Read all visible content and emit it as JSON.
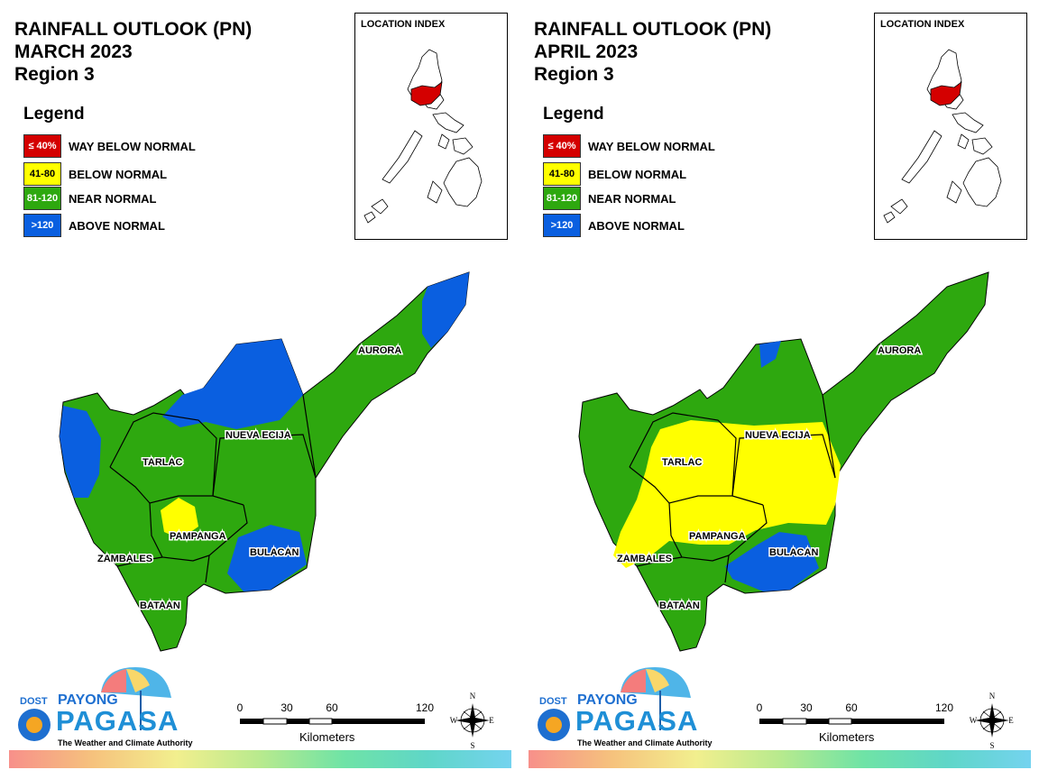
{
  "panels": [
    {
      "title_line1": "RAINFALL OUTLOOK (PN)",
      "title_line2": "MARCH 2023",
      "title_line3": "Region 3",
      "legend_title": "Legend",
      "legend": [
        {
          "badge": "≤ 40%",
          "label": "WAY BELOW NORMAL",
          "color": "#d40000"
        },
        {
          "badge": "41-80",
          "label": "BELOW NORMAL",
          "color": "#ffff00"
        },
        {
          "badge": "81-120",
          "label": "NEAR NORMAL",
          "color": "#2ea80f"
        },
        {
          "badge": ">120",
          "label": "ABOVE NORMAL",
          "color": "#0a5fe0"
        }
      ],
      "inset_title": "LOCATION INDEX",
      "provinces": [
        "AURORA",
        "NUEVA ECIJA",
        "TARLAC",
        "PAMPANGA",
        "ZAMBALES",
        "BULACAN",
        "BATAAN"
      ],
      "logo_dost": "DOST",
      "logo_payong": "PAYONG",
      "logo_pagasa": "PAGASA",
      "logo_tagline": "The Weather and Climate Authority",
      "scale_ticks": [
        "0",
        "30",
        "60",
        "120"
      ],
      "scale_unit": "Kilometers",
      "compass": {
        "n": "N",
        "e": "E",
        "s": "S",
        "w": "W"
      }
    },
    {
      "title_line1": "RAINFALL OUTLOOK (PN)",
      "title_line2": "APRIL 2023",
      "title_line3": "Region 3",
      "legend_title": "Legend",
      "legend": [
        {
          "badge": "≤ 40%",
          "label": "WAY BELOW NORMAL",
          "color": "#d40000"
        },
        {
          "badge": "41-80",
          "label": "BELOW NORMAL",
          "color": "#ffff00"
        },
        {
          "badge": "81-120",
          "label": "NEAR NORMAL",
          "color": "#2ea80f"
        },
        {
          "badge": ">120",
          "label": "ABOVE NORMAL",
          "color": "#0a5fe0"
        }
      ],
      "inset_title": "LOCATION INDEX",
      "provinces": [
        "AURORA",
        "NUEVA ECIJA",
        "TARLAC",
        "PAMPANGA",
        "ZAMBALES",
        "BULACAN",
        "BATAAN"
      ],
      "logo_dost": "DOST",
      "logo_payong": "PAYONG",
      "logo_pagasa": "PAGASA",
      "logo_tagline": "The Weather and Climate Authority",
      "scale_ticks": [
        "0",
        "30",
        "60",
        "120"
      ],
      "scale_unit": "Kilometers",
      "compass": {
        "n": "N",
        "e": "E",
        "s": "S",
        "w": "W"
      }
    }
  ]
}
